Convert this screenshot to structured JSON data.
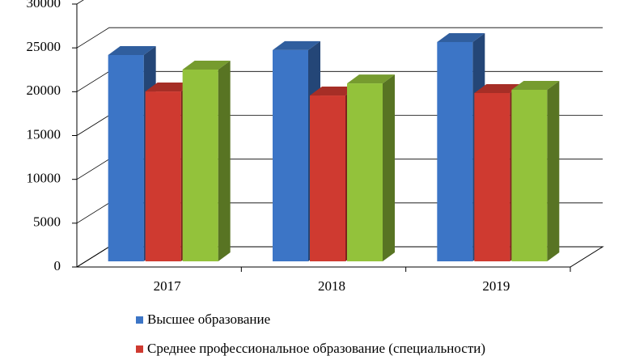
{
  "chart_data": {
    "type": "bar3d",
    "categories": [
      "2017",
      "2018",
      "2019"
    ],
    "series": [
      {
        "name": "Высшее образование",
        "color": "#3c75c6",
        "values": [
          23540,
          24100,
          25020
        ]
      },
      {
        "name": "Среднее профессиональное образование (специальности)",
        "color": "#cf3a30",
        "values": [
          19380,
          18920,
          19200
        ]
      },
      {
        "name": null,
        "color": "#93c23b",
        "values": [
          21880,
          20300,
          19570
        ]
      }
    ],
    "ylim": [
      0,
      30000
    ],
    "yticks": [
      0,
      5000,
      10000,
      15000,
      20000,
      25000,
      30000
    ],
    "grid": true
  }
}
